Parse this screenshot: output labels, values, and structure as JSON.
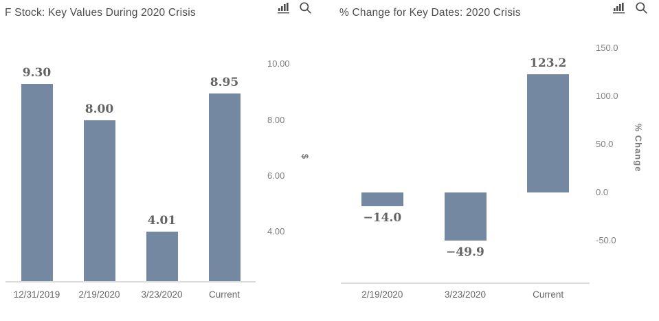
{
  "colors": {
    "bar": "#7488a1",
    "axis_line": "#dcdcdc",
    "title_text": "#4c4c4c",
    "value_label_text": "#646464",
    "tick_label_text": "#7e7e7e",
    "icon": "#4a4a4a"
  },
  "toolbar": {
    "chart_type_icon": "bar-chart-icon",
    "zoom_icon": "magnifier-icon"
  },
  "chart_data": [
    {
      "type": "bar",
      "title": "F Stock: Key Values During 2020 Crisis",
      "categories": [
        "12/31/2019",
        "2/19/2020",
        "3/23/2020",
        "Current"
      ],
      "values": [
        9.3,
        8.0,
        4.01,
        8.95
      ],
      "value_labels": [
        "9.30",
        "8.00",
        "4.01",
        "8.95"
      ],
      "xlabel": "",
      "ylabel": "$",
      "ytick_values": [
        10,
        8,
        6,
        4
      ],
      "ytick_labels": [
        "10.00",
        "8.00",
        "6.00",
        "4.00"
      ],
      "ylim": [
        2.2,
        10.8
      ],
      "axis_side": "right",
      "grid": false,
      "legend": false
    },
    {
      "type": "bar",
      "title": "% Change for Key Dates: 2020 Crisis",
      "categories": [
        "2/19/2020",
        "3/23/2020",
        "Current"
      ],
      "values": [
        -14.0,
        -49.9,
        123.2
      ],
      "value_labels": [
        "−14.0",
        "−49.9",
        "123.2"
      ],
      "xlabel": "",
      "ylabel": "% Change",
      "ytick_values": [
        150,
        100,
        50,
        0,
        -50
      ],
      "ytick_labels": [
        "150.0",
        "100.0",
        "50.0",
        "0.0",
        "-50.0"
      ],
      "ylim": [
        -95,
        160
      ],
      "axis_side": "right",
      "grid": false,
      "legend": false
    }
  ]
}
